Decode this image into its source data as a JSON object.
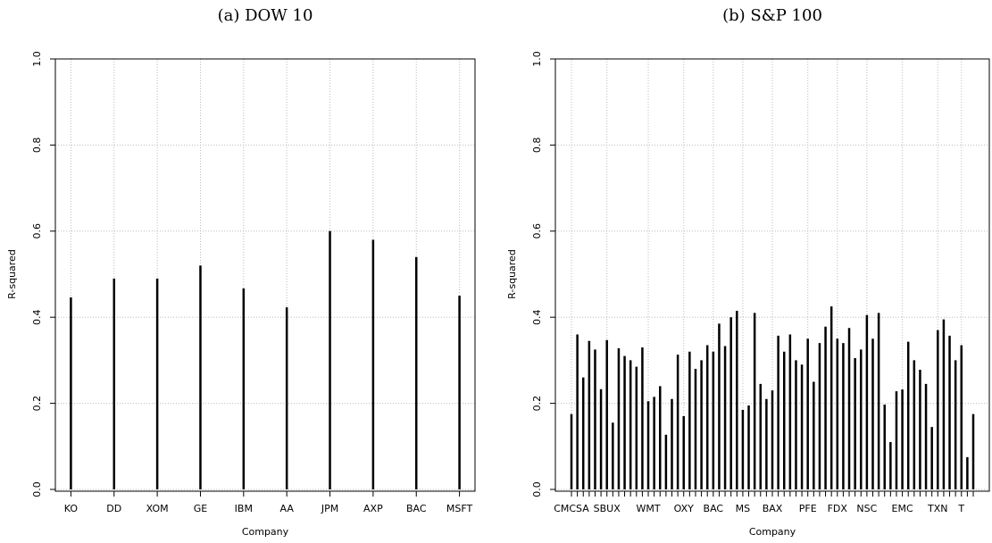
{
  "chart_data": [
    {
      "type": "bar",
      "title": "(a) DOW 10",
      "xlabel": "Company",
      "ylabel": "R-squared",
      "categories": [
        "KO",
        "DD",
        "XOM",
        "GE",
        "IBM",
        "AA",
        "JPM",
        "AXP",
        "BAC",
        "MSFT"
      ],
      "values": [
        0.446,
        0.49,
        0.49,
        0.52,
        0.467,
        0.423,
        0.6,
        0.58,
        0.54,
        0.45
      ],
      "color": "#000000",
      "ylim": [
        0,
        1
      ],
      "yticks": [
        {
          "value": 0,
          "label": "0.0"
        },
        0.2,
        0.4,
        0.6,
        0.8,
        {
          "value": 1,
          "label": "1.0"
        }
      ],
      "grid": true
    },
    {
      "type": "bar",
      "title": "(b) S&P 100",
      "xlabel": "Company",
      "ylabel": "R-squared",
      "categories": [
        "CMCSA",
        null,
        null,
        null,
        null,
        null,
        "SBUX",
        null,
        null,
        null,
        null,
        null,
        null,
        "WMT",
        null,
        null,
        null,
        null,
        null,
        "OXY",
        null,
        null,
        null,
        null,
        "BAC",
        null,
        null,
        null,
        null,
        "MS",
        null,
        null,
        null,
        null,
        "BAX",
        null,
        null,
        null,
        null,
        null,
        "PFE",
        null,
        null,
        null,
        null,
        "FDX",
        null,
        null,
        null,
        null,
        "NSC",
        null,
        null,
        null,
        null,
        null,
        "EMC",
        null,
        null,
        null,
        null,
        null,
        "TXN",
        null,
        null,
        null,
        "T",
        null,
        null
      ],
      "values": [
        0.175,
        0.36,
        0.26,
        0.345,
        0.325,
        0.233,
        0.347,
        0.155,
        0.328,
        0.31,
        0.3,
        0.285,
        0.33,
        0.205,
        0.215,
        0.24,
        0.127,
        0.21,
        0.313,
        0.17,
        0.32,
        0.28,
        0.3,
        0.335,
        0.32,
        0.385,
        0.333,
        0.4,
        0.415,
        0.185,
        0.195,
        0.41,
        0.245,
        0.21,
        0.23,
        0.357,
        0.32,
        0.36,
        0.3,
        0.29,
        0.35,
        0.25,
        0.34,
        0.378,
        0.425,
        0.35,
        0.34,
        0.375,
        0.305,
        0.325,
        0.405,
        0.35,
        0.41,
        0.197,
        0.11,
        0.228,
        0.232,
        0.343,
        0.3,
        0.278,
        0.245,
        0.145,
        0.37,
        0.395,
        0.357,
        0.3,
        0.335,
        0.075,
        0.175
      ],
      "color": "#000000",
      "ylim": [
        0,
        1
      ],
      "yticks": [
        {
          "value": 0,
          "label": "0.0"
        },
        0.2,
        0.4,
        0.6,
        0.8,
        {
          "value": 1,
          "label": "1.0"
        }
      ],
      "grid": true
    }
  ]
}
